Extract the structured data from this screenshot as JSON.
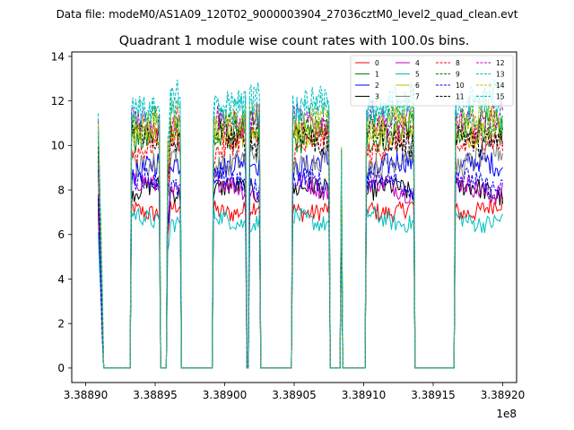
{
  "suptitle": "Data file: modeM0/AS1A09_120T02_9000003904_27036cztM0_level2_quad_clean.evt",
  "chart_data": {
    "type": "line",
    "title": "Quadrant 1 module wise count rates with 100.0s bins.",
    "xlabel": "",
    "ylabel": "",
    "x_offset_label": "1e8",
    "xlim": [
      338889000,
      338921000
    ],
    "ylim": [
      -0.65,
      14.2
    ],
    "x_ticks": [
      {
        "value": 338890000,
        "label": "3.38890"
      },
      {
        "value": 338895000,
        "label": "3.38895"
      },
      {
        "value": 338900000,
        "label": "3.38900"
      },
      {
        "value": 338905000,
        "label": "3.38905"
      },
      {
        "value": 338910000,
        "label": "3.38910"
      },
      {
        "value": 338915000,
        "label": "3.38915"
      },
      {
        "value": 338920000,
        "label": "3.38920"
      }
    ],
    "y_ticks": [
      {
        "value": 0,
        "label": "0"
      },
      {
        "value": 2,
        "label": "2"
      },
      {
        "value": 4,
        "label": "4"
      },
      {
        "value": 6,
        "label": "6"
      },
      {
        "value": 8,
        "label": "8"
      },
      {
        "value": 10,
        "label": "10"
      },
      {
        "value": 12,
        "label": "12"
      },
      {
        "value": 14,
        "label": "14"
      }
    ],
    "bin_seconds": 100,
    "x_start": 338890900,
    "x_end": 338920000,
    "legend_position": "top-right",
    "active_windows": [
      [
        338890900,
        338891200,
        "decay"
      ],
      [
        338893300,
        338895300,
        "on"
      ],
      [
        338895900,
        338896000,
        "spike"
      ],
      [
        338896100,
        338896800,
        "on"
      ],
      [
        338899200,
        338901500,
        "on"
      ],
      [
        338901800,
        338902500,
        "on"
      ],
      [
        338904900,
        338907500,
        "on"
      ],
      [
        338908400,
        338908400,
        "spike"
      ],
      [
        338910200,
        338913600,
        "on"
      ],
      [
        338916600,
        338920000,
        "on"
      ]
    ],
    "series": [
      {
        "name": "0",
        "color": "#ff0000",
        "dash": "solid",
        "level": 7.2
      },
      {
        "name": "1",
        "color": "#008000",
        "dash": "solid",
        "level": 10.6
      },
      {
        "name": "2",
        "color": "#0000ff",
        "dash": "solid",
        "level": 9.0
      },
      {
        "name": "3",
        "color": "#000000",
        "dash": "solid",
        "level": 7.9
      },
      {
        "name": "4",
        "color": "#bf00bf",
        "dash": "solid",
        "level": 8.1
      },
      {
        "name": "5",
        "color": "#00bfbf",
        "dash": "solid",
        "level": 6.7
      },
      {
        "name": "6",
        "color": "#bfbf00",
        "dash": "solid",
        "level": 10.8
      },
      {
        "name": "7",
        "color": "#808080",
        "dash": "solid",
        "level": 9.4
      },
      {
        "name": "8",
        "color": "#ff0000",
        "dash": "dashed",
        "level": 10.0
      },
      {
        "name": "9",
        "color": "#008000",
        "dash": "dashed",
        "level": 10.8
      },
      {
        "name": "10",
        "color": "#0000ff",
        "dash": "dashed",
        "level": 8.3
      },
      {
        "name": "11",
        "color": "#000000",
        "dash": "dashed",
        "level": 10.4
      },
      {
        "name": "12",
        "color": "#bf00bf",
        "dash": "dashed",
        "level": 11.3
      },
      {
        "name": "13",
        "color": "#00bfbf",
        "dash": "dashed",
        "level": 11.9
      },
      {
        "name": "14",
        "color": "#bfbf00",
        "dash": "dashed",
        "level": 11.0
      },
      {
        "name": "15",
        "color": "#00bfbf",
        "dash": "dashed",
        "level": 11.6
      }
    ]
  }
}
